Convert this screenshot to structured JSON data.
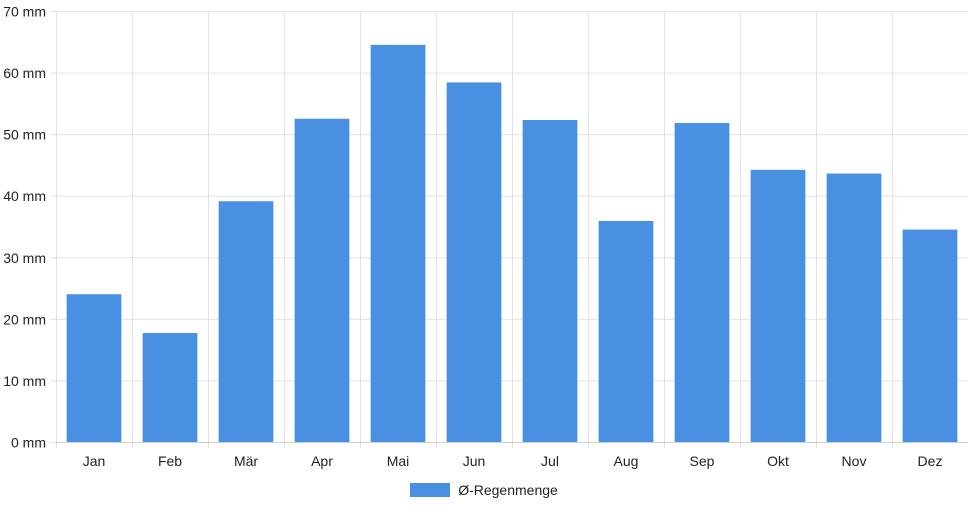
{
  "chart_data": {
    "type": "bar",
    "categories": [
      "Jan",
      "Feb",
      "Mär",
      "Apr",
      "Mai",
      "Jun",
      "Jul",
      "Aug",
      "Sep",
      "Okt",
      "Nov",
      "Dez"
    ],
    "series": [
      {
        "name": "Ø-Regenmenge",
        "values": [
          24,
          17.7,
          39.1,
          52.5,
          64.5,
          58.4,
          52.3,
          35.9,
          51.8,
          44.2,
          43.6,
          34.5
        ],
        "color": "#4a90e2"
      }
    ],
    "y_unit": "mm",
    "ylim": [
      0,
      70
    ],
    "y_ticks": [
      0,
      10,
      20,
      30,
      40,
      50,
      60,
      70
    ],
    "y_tick_labels": [
      "0 mm",
      "10 mm",
      "20 mm",
      "30 mm",
      "40 mm",
      "50 mm",
      "60 mm",
      "70 mm"
    ],
    "grid": true,
    "legend_position": "bottom"
  }
}
